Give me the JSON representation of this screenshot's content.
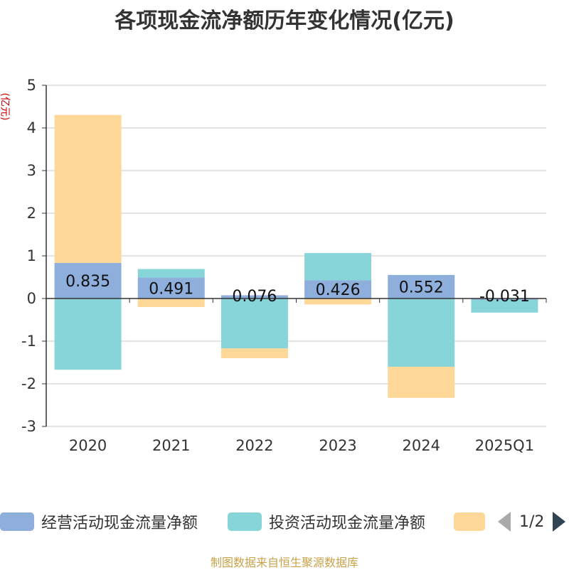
{
  "title": "各项现金流净额历年变化情况(亿元)",
  "unit_label": "(亿元)",
  "source": "制图数据来自恒生聚源数据库",
  "pager": {
    "text": "1/2",
    "prev_icon": "chevron-left-icon",
    "next_icon": "chevron-right-icon"
  },
  "legend": [
    {
      "name": "经营活动现金流量净额",
      "color": "#8eaedc"
    },
    {
      "name": "投资活动现金流量净额",
      "color": "#87d5d8"
    },
    {
      "name": "",
      "color": "#fdd898"
    }
  ],
  "chart_data": {
    "type": "bar",
    "stacked": true,
    "categories": [
      "2020",
      "2021",
      "2022",
      "2023",
      "2024",
      "2025Q1"
    ],
    "ylim": [
      -3,
      5
    ],
    "yticks": [
      5,
      4,
      3,
      2,
      1,
      0,
      -1,
      -2,
      -3
    ],
    "grid": true,
    "legend_position": "bottom",
    "series": [
      {
        "name": "经营活动现金流量净额",
        "color": "#8eaedc",
        "values": [
          0.835,
          0.491,
          0.076,
          0.426,
          0.552,
          -0.031
        ]
      },
      {
        "name": "投资活动现金流量净额",
        "color": "#87d5d8",
        "values": [
          -1.67,
          0.2,
          -1.17,
          0.64,
          -1.6,
          -0.3
        ]
      },
      {
        "color": "#fdd898",
        "values": [
          3.47,
          -0.2,
          -0.23,
          -0.14,
          -0.73,
          0.0
        ]
      }
    ],
    "data_labels": [
      "0.835",
      "0.491",
      "0.076",
      "0.426",
      "0.552",
      "-0.031"
    ]
  }
}
